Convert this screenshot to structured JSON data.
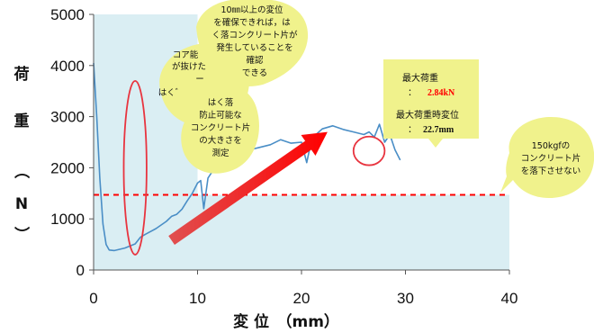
{
  "chart_data": {
    "type": "line",
    "xlabel": "変 位　（mm）",
    "ylabel_chars": [
      "荷",
      "重",
      "（",
      "N",
      "）"
    ],
    "xlim": [
      0,
      40
    ],
    "ylim": [
      0,
      5000
    ],
    "x_ticks": [
      "0",
      "10",
      "20",
      "30",
      "40"
    ],
    "y_ticks": [
      "0",
      "1000",
      "2000",
      "3000",
      "4000",
      "5000"
    ],
    "grid": false,
    "colors": {
      "plot_fill": "#daeef3",
      "series": "#4a8ec6",
      "threshold": "#ff0000",
      "arrow": "#ff0000",
      "bubble": "#f0f28c",
      "highlight": "#e8343f",
      "value_text": "#ff0000"
    },
    "series": [
      {
        "x": [
          0,
          0.3,
          0.6,
          0.9,
          1.2,
          1.5,
          2,
          3,
          4,
          4.5,
          5,
          6,
          7,
          7.5,
          8,
          8.5,
          9,
          9.5,
          10,
          10.3,
          10.6,
          11,
          11.5,
          12,
          13,
          14,
          15,
          16,
          17,
          18,
          19,
          20,
          20.5,
          21,
          22,
          23,
          24,
          25,
          26,
          26.5,
          27,
          27.5,
          28,
          28.5,
          29,
          29.5
        ],
        "y": [
          4050,
          3000,
          1800,
          900,
          500,
          390,
          380,
          430,
          510,
          640,
          700,
          810,
          950,
          1050,
          1090,
          1190,
          1350,
          1500,
          1700,
          1750,
          1200,
          1800,
          1950,
          2050,
          2200,
          2280,
          2350,
          2400,
          2450,
          2550,
          2480,
          2500,
          2100,
          2580,
          2760,
          2820,
          2750,
          2700,
          2650,
          2700,
          2600,
          2850,
          2500,
          2650,
          2350,
          2150
        ]
      }
    ],
    "threshold": {
      "y": 1470
    },
    "shaded_region": {
      "x_start": 0,
      "x_end": 10,
      "y_start": 1470,
      "y_end": 5000
    },
    "ellipse": {
      "x_center": 4,
      "y_center": 2000,
      "x_radius": 1.1,
      "y_radius": 1700
    },
    "circle": {
      "x_center": 26.5,
      "y_center": 2330,
      "x_radius": 1.5,
      "y_radius": 280
    },
    "trend_arrow": {
      "from": [
        7.5,
        580
      ],
      "to": [
        22.5,
        2700
      ]
    },
    "annotations": {
      "top_bubble": [
        "10㎜以上の変位",
        "を確保できれば，は",
        "く落コンクリート片が",
        "発生していることを",
        "確認",
        "できる"
      ],
      "left_back_bubble": [
        "コア能",
        "が抜けた",
        "ー",
        "はく゛"
      ],
      "left_front_bubble": [
        "はく落",
        "防止可能な",
        "コンクリート片",
        "の大きさを",
        "測定"
      ],
      "right_bubble": [
        "150kgfの",
        "コンクリート片",
        "を落下させない"
      ],
      "max_box": {
        "max_load_label": "最大荷重",
        "max_load_value": "2.84kN",
        "max_disp_label": "最大荷重時変位",
        "max_disp_value": "22.7mm",
        "colon": "："
      }
    }
  }
}
